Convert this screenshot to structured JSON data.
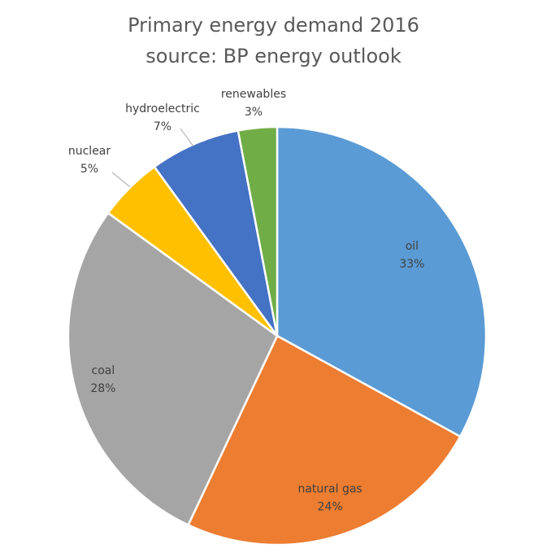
{
  "chart_data": {
    "type": "pie",
    "title": "Primary energy demand 2016",
    "subtitle": "source: BP energy outlook",
    "categories": [
      "oil",
      "natural gas",
      "coal",
      "nuclear",
      "hydroelectric",
      "renewables"
    ],
    "values": [
      33,
      24,
      28,
      5,
      7,
      3
    ],
    "value_labels": [
      "33%",
      "24%",
      "28%",
      "5%",
      "7%",
      "3%"
    ],
    "colors": [
      "#5B9BD5",
      "#ED7D31",
      "#A5A5A5",
      "#FFC000",
      "#4472C4",
      "#70AD47"
    ],
    "legend": "none",
    "label_placement": [
      "inside",
      "inside",
      "inside",
      "outside",
      "outside",
      "outside"
    ]
  }
}
